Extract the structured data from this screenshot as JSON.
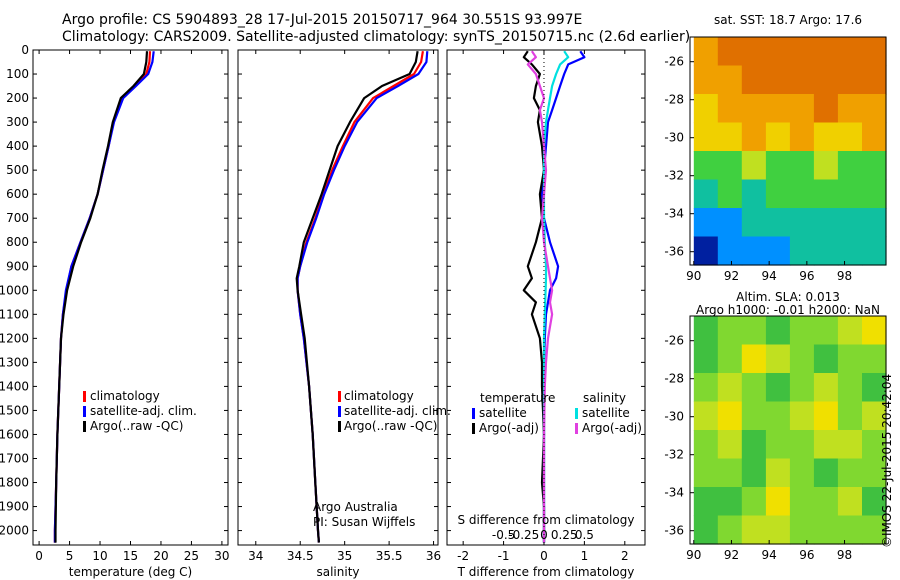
{
  "header": {
    "title_line1": "Argo profile: CS 5904893_28 17-Jul-2015 20150717_964 30.551S 93.997E",
    "title_line2": "Climatology: CARS2009. Satellite-adjusted climatology: synTS_20150715.nc (2.6d earlier)"
  },
  "colors": {
    "climatology": "#ff0000",
    "satellite": "#0000ff",
    "argo": "#000000",
    "salinity_satellite": "#00e0e0",
    "salinity_argo": "#e040e0"
  },
  "chart_data": [
    {
      "id": "temperature",
      "type": "line",
      "xlabel": "temperature (deg C)",
      "ylabel": "",
      "xlim": [
        -1,
        31
      ],
      "xticks": [
        0,
        5,
        10,
        15,
        20,
        25,
        30
      ],
      "ylim": [
        0,
        2060
      ],
      "yticks": [
        0,
        100,
        200,
        300,
        400,
        500,
        600,
        700,
        800,
        900,
        1000,
        1100,
        1200,
        1300,
        1400,
        1500,
        1600,
        1700,
        1800,
        1900,
        2000
      ],
      "y_inverted": true,
      "legend": [
        "climatology",
        "satellite-adj. clim.",
        "Argo(..raw -QC)"
      ],
      "depth": [
        5,
        50,
        100,
        150,
        200,
        300,
        400,
        500,
        600,
        700,
        800,
        900,
        1000,
        1100,
        1200,
        1400,
        1600,
        1800,
        2000,
        2050
      ],
      "series": [
        {
          "name": "climatology",
          "color": "#ff0000",
          "values": [
            18.2,
            18.1,
            17.6,
            15.8,
            13.7,
            12.2,
            11.4,
            10.5,
            9.6,
            8.3,
            6.8,
            5.3,
            4.5,
            3.9,
            3.6,
            3.3,
            3.0,
            2.8,
            2.6,
            2.6
          ]
        },
        {
          "name": "satellite-adj. clim.",
          "color": "#0000ff",
          "values": [
            18.8,
            18.6,
            17.9,
            15.9,
            13.8,
            12.3,
            11.4,
            10.5,
            9.6,
            8.3,
            6.8,
            5.3,
            4.4,
            3.9,
            3.6,
            3.3,
            3.0,
            2.8,
            2.6,
            2.6
          ]
        },
        {
          "name": "Argo(..raw -QC)",
          "color": "#000000",
          "values": [
            17.7,
            17.6,
            17.2,
            15.5,
            13.4,
            12.1,
            11.3,
            10.4,
            9.6,
            8.4,
            6.9,
            5.6,
            4.6,
            4.0,
            3.6,
            3.3,
            3.0,
            2.8,
            2.7,
            2.7
          ]
        }
      ],
      "annotations": []
    },
    {
      "id": "salinity",
      "type": "line",
      "xlabel": "salinity",
      "ylabel": "",
      "xlim": [
        33.8,
        36.05
      ],
      "xticks": [
        34,
        34.5,
        35,
        35.5,
        36
      ],
      "xtick_labels": [
        "34",
        "34.5",
        "35",
        "35.5",
        "36"
      ],
      "ylim": [
        0,
        2060
      ],
      "y_inverted": true,
      "legend": [
        "climatology",
        "satellite-adj. clim.",
        "Argo(..raw -QC)"
      ],
      "depth": [
        5,
        50,
        100,
        150,
        200,
        300,
        400,
        500,
        600,
        700,
        800,
        900,
        950,
        1000,
        1100,
        1200,
        1400,
        1600,
        1800,
        2000,
        2050
      ],
      "series": [
        {
          "name": "climatology",
          "color": "#ff0000",
          "values": [
            35.88,
            35.86,
            35.78,
            35.55,
            35.32,
            35.11,
            34.98,
            34.86,
            34.76,
            34.67,
            34.57,
            34.5,
            34.47,
            34.47,
            34.5,
            34.54,
            34.6,
            34.64,
            34.67,
            34.7,
            34.71
          ]
        },
        {
          "name": "satellite-adj. clim.",
          "color": "#0000ff",
          "values": [
            35.93,
            35.92,
            35.83,
            35.6,
            35.36,
            35.14,
            35.0,
            34.88,
            34.77,
            34.68,
            34.58,
            34.5,
            34.47,
            34.47,
            34.5,
            34.54,
            34.6,
            34.64,
            34.67,
            34.7,
            34.71
          ]
        },
        {
          "name": "Argo(..raw -QC)",
          "color": "#000000",
          "values": [
            35.82,
            35.8,
            35.73,
            35.42,
            35.22,
            35.06,
            34.92,
            34.83,
            34.74,
            34.64,
            34.54,
            34.49,
            34.46,
            34.47,
            34.51,
            34.55,
            34.6,
            34.64,
            34.67,
            34.7,
            34.71
          ]
        }
      ],
      "annotations": [
        "Argo Australia",
        "PI: Susan Wijffels"
      ]
    },
    {
      "id": "difference",
      "type": "line",
      "xlabel": "T difference from climatology",
      "xlabel2": "S difference from climatology",
      "xlim": [
        -2.4,
        2.5
      ],
      "xticks": [
        -2,
        -1,
        0,
        1,
        2
      ],
      "xtick_labels": [
        "-2",
        "-1",
        "0",
        "1",
        "2"
      ],
      "xticks_top": [
        -1,
        -0.5,
        0,
        0.5,
        1
      ],
      "xtick_labels_top": [
        "-0.5",
        "-0.25",
        "0",
        "0.25",
        "0.5"
      ],
      "ylim": [
        0,
        2060
      ],
      "y_inverted": true,
      "legend_temperature_title": "temperature",
      "legend_salinity_title": "salinity",
      "legend": [
        "satellite",
        "Argo(-adj)",
        "satellite",
        "Argo(-adj)"
      ],
      "depth": [
        5,
        30,
        60,
        100,
        150,
        200,
        250,
        300,
        400,
        500,
        600,
        700,
        800,
        900,
        950,
        1000,
        1050,
        1100,
        1200,
        1300,
        1400,
        1600,
        1800,
        1900,
        2050
      ],
      "series": [
        {
          "name": "temperature satellite",
          "color": "#0000ff",
          "values": [
            0.9,
            1.0,
            0.6,
            0.5,
            0.4,
            0.3,
            0.2,
            0.1,
            0.05,
            0.0,
            -0.05,
            0.0,
            0.15,
            0.35,
            0.3,
            0.15,
            0.1,
            0.05,
            0.02,
            0.0,
            0.0,
            0.0,
            0.0,
            0.0,
            0.0
          ]
        },
        {
          "name": "temperature Argo(-adj)",
          "color": "#000000",
          "values": [
            -0.4,
            -0.5,
            -0.3,
            -0.1,
            -0.2,
            -0.25,
            -0.1,
            -0.15,
            -0.05,
            0.0,
            -0.1,
            -0.05,
            -0.2,
            -0.4,
            -0.3,
            -0.5,
            -0.2,
            -0.3,
            -0.1,
            -0.05,
            -0.05,
            0.0,
            -0.05,
            0.0,
            0.0
          ]
        },
        {
          "name": "salinity satellite",
          "color": "#00e0e0",
          "values": [
            0.5,
            0.6,
            0.4,
            0.3,
            0.2,
            0.15,
            0.1,
            0.05,
            0.0,
            0.0,
            0.0,
            0.0,
            0.02,
            0.05,
            0.05,
            0.04,
            0.03,
            0.02,
            0.0,
            0.0,
            0.0,
            0.0,
            0.0,
            0.0,
            0.0
          ]
        },
        {
          "name": "salinity Argo(-adj)",
          "color": "#e040e0",
          "values": [
            -0.3,
            -0.2,
            -0.4,
            -0.2,
            -0.1,
            0.0,
            -0.1,
            -0.05,
            0.0,
            0.05,
            0.0,
            -0.05,
            0.0,
            0.1,
            0.15,
            0.2,
            0.15,
            0.2,
            0.1,
            0.05,
            0.02,
            0.0,
            0.0,
            0.0,
            0.0
          ]
        }
      ]
    },
    {
      "id": "sst_map",
      "type": "heatmap",
      "title": "sat. SST: 18.7 Argo: 17.6",
      "xlim": [
        89.8,
        100.2
      ],
      "xticks": [
        90,
        92,
        94,
        96,
        98
      ],
      "ylim": [
        -36.7,
        -24.7
      ],
      "yticks": [
        -26,
        -28,
        -30,
        -32,
        -34,
        -36
      ],
      "palette": [
        "#0020a0",
        "#0090ff",
        "#10c0a0",
        "#40d040",
        "#c0e020",
        "#f0d000",
        "#f0a000",
        "#e07000"
      ],
      "rows_top_to_bottom": [
        [
          6,
          7,
          7,
          7,
          7,
          7,
          7,
          7
        ],
        [
          6,
          6,
          7,
          7,
          7,
          7,
          7,
          7
        ],
        [
          5,
          6,
          6,
          6,
          6,
          7,
          6,
          6
        ],
        [
          5,
          5,
          6,
          5,
          6,
          5,
          5,
          6
        ],
        [
          3,
          3,
          4,
          3,
          3,
          4,
          3,
          3
        ],
        [
          2,
          3,
          2,
          3,
          3,
          3,
          3,
          3
        ],
        [
          1,
          1,
          2,
          2,
          2,
          2,
          2,
          2
        ],
        [
          0,
          1,
          1,
          1,
          2,
          2,
          2,
          2
        ]
      ]
    },
    {
      "id": "sla_map",
      "type": "heatmap",
      "title": "Altim. SLA: 0.013",
      "subtitle": "Argo h1000: -0.01 h2000: NaN",
      "xlim": [
        89.8,
        100.2
      ],
      "xticks": [
        90,
        92,
        94,
        96,
        98
      ],
      "ylim": [
        -36.7,
        -24.7
      ],
      "yticks": [
        -26,
        -28,
        -30,
        -32,
        -34,
        -36
      ],
      "palette": [
        "#20a060",
        "#40c040",
        "#80d830",
        "#c0e020",
        "#f0e000"
      ],
      "rows_top_to_bottom": [
        [
          1,
          2,
          2,
          1,
          2,
          2,
          3,
          4
        ],
        [
          1,
          2,
          4,
          3,
          2,
          1,
          2,
          2
        ],
        [
          2,
          3,
          2,
          1,
          2,
          3,
          2,
          1
        ],
        [
          3,
          4,
          2,
          2,
          3,
          4,
          2,
          3
        ],
        [
          2,
          3,
          1,
          2,
          2,
          3,
          3,
          2
        ],
        [
          2,
          2,
          1,
          3,
          2,
          1,
          2,
          2
        ],
        [
          1,
          1,
          2,
          4,
          2,
          2,
          3,
          1
        ],
        [
          1,
          2,
          3,
          3,
          2,
          2,
          2,
          2
        ]
      ]
    }
  ],
  "credit": "©IMOS 22-Jul-2015 20:42:04"
}
